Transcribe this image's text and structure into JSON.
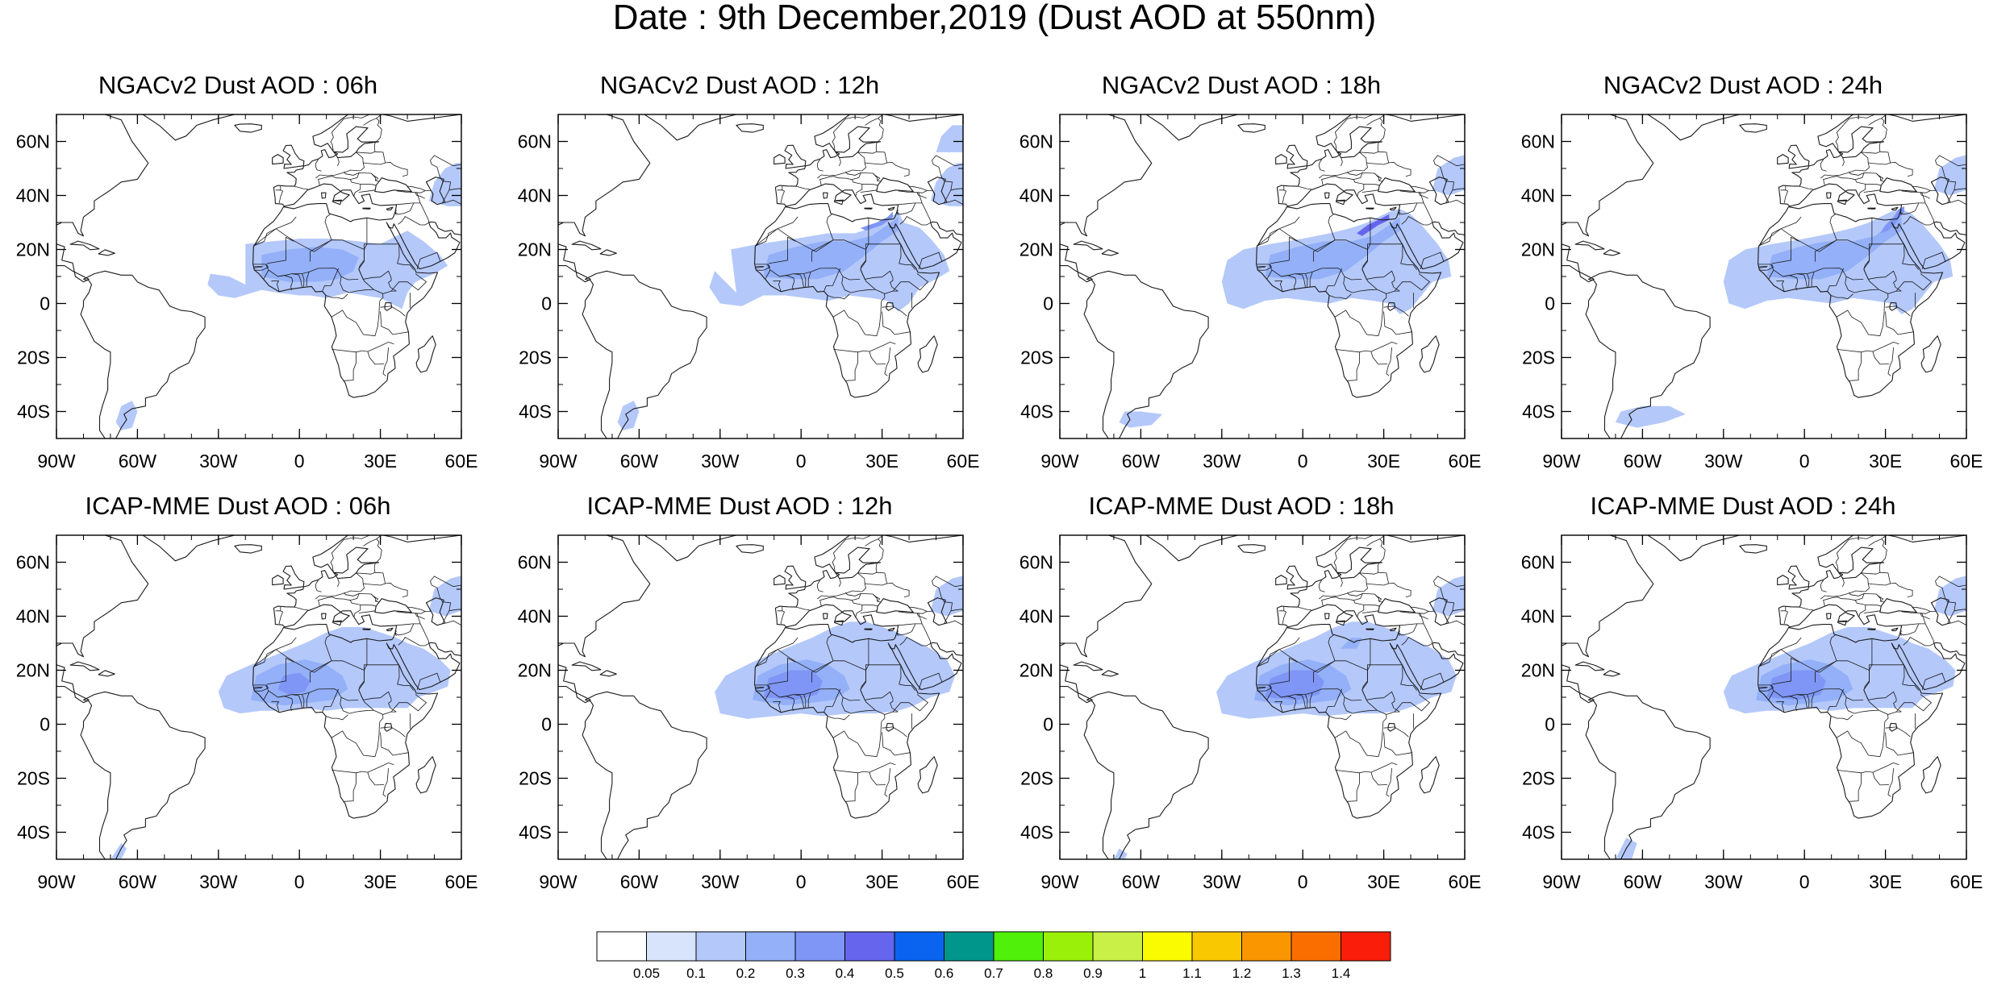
{
  "figure": {
    "title": "Date : 9th December,2019 (Dust AOD at 550nm)"
  },
  "panels": [
    {
      "title": "NGACv2 Dust AOD : 06h",
      "model": "NGACv2",
      "lead": "06h"
    },
    {
      "title": "NGACv2 Dust AOD : 12h",
      "model": "NGACv2",
      "lead": "12h"
    },
    {
      "title": "NGACv2 Dust AOD : 18h",
      "model": "NGACv2",
      "lead": "18h"
    },
    {
      "title": "NGACv2 Dust AOD : 24h",
      "model": "NGACv2",
      "lead": "24h"
    },
    {
      "title": "ICAP-MME Dust AOD : 06h",
      "model": "ICAP-MME",
      "lead": "06h"
    },
    {
      "title": "ICAP-MME Dust AOD : 12h",
      "model": "ICAP-MME",
      "lead": "12h"
    },
    {
      "title": "ICAP-MME Dust AOD : 18h",
      "model": "ICAP-MME",
      "lead": "18h"
    },
    {
      "title": "ICAP-MME Dust AOD : 24h",
      "model": "ICAP-MME",
      "lead": "24h"
    }
  ],
  "axes": {
    "lon_ticks": [
      {
        "value": -90,
        "label": "90W"
      },
      {
        "value": -60,
        "label": "60W"
      },
      {
        "value": -30,
        "label": "30W"
      },
      {
        "value": 0,
        "label": "0"
      },
      {
        "value": 30,
        "label": "30E"
      },
      {
        "value": 60,
        "label": "60E"
      }
    ],
    "lat_ticks": [
      {
        "value": 60,
        "label": "60N"
      },
      {
        "value": 40,
        "label": "40N"
      },
      {
        "value": 20,
        "label": "20N"
      },
      {
        "value": 0,
        "label": "0"
      },
      {
        "value": -20,
        "label": "20S"
      },
      {
        "value": -40,
        "label": "40S"
      }
    ],
    "lon_range": [
      -90,
      60
    ],
    "lat_range": [
      -50,
      70
    ]
  },
  "colorbar": {
    "labels": [
      "0.05",
      "0.1",
      "0.2",
      "0.3",
      "0.4",
      "0.5",
      "0.6",
      "0.7",
      "0.8",
      "0.9",
      "1",
      "1.1",
      "1.2",
      "1.3",
      "1.4"
    ],
    "colors": [
      "#ffffff",
      "#d8e3fc",
      "#b4c8fa",
      "#93b0f8",
      "#7f96f6",
      "#6565ee",
      "#0a64f0",
      "#00968c",
      "#50f00a",
      "#9bf00a",
      "#c8f046",
      "#fafa00",
      "#fac800",
      "#fa9600",
      "#fa6e00",
      "#fa1e0a"
    ]
  },
  "colors": {
    "coastline": "#1a1a1a",
    "frame": "#000000"
  }
}
